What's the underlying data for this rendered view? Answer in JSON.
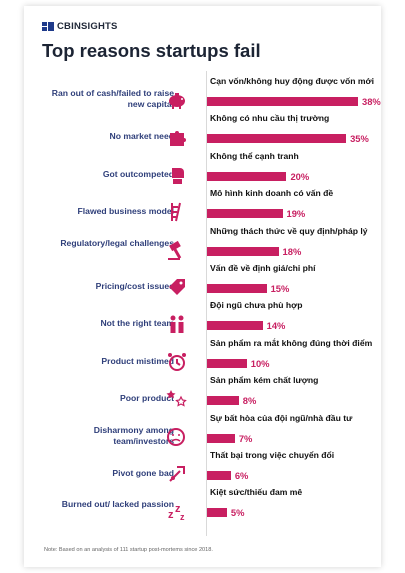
{
  "header": {
    "brand": "CBINSIGHTS",
    "title": "Top reasons startups fail"
  },
  "colors": {
    "bar": "#c81f61",
    "reason_text": "#2f3f7a",
    "icon": "#c81f61"
  },
  "chart_data": {
    "type": "bar",
    "orientation": "horizontal",
    "title": "Top reasons startups fail",
    "unit": "%",
    "xlim": [
      0,
      40
    ],
    "grid": false,
    "categories": [
      "Ran out of cash/failed to raise new capital",
      "No market need",
      "Got outcompeted",
      "Flawed business model",
      "Regulatory/legal challenges",
      "Pricing/cost issues",
      "Not the right team",
      "Product mistimed",
      "Poor product",
      "Disharmony among team/investors",
      "Pivot gone bad",
      "Burned out/ lacked passion"
    ],
    "values": [
      38,
      35,
      20,
      19,
      18,
      15,
      14,
      10,
      8,
      7,
      6,
      5
    ],
    "data_labels": [
      "38%",
      "35%",
      "20%",
      "19%",
      "18%",
      "15%",
      "14%",
      "10%",
      "8%",
      "7%",
      "6%",
      "5%"
    ],
    "annotations_vi": [
      "Cạn vốn/không huy động được vốn mới",
      "Không có nhu cầu thị trường",
      "Không thể cạnh tranh",
      "Mô hình kinh doanh có vấn đề",
      "Những thách thức về quy định/pháp lý",
      "Vấn đề về định giá/chi phí",
      "Đội ngũ chưa phù hợp",
      "Sản phẩm ra mắt không đúng thời điểm",
      "Sản phẩm kém chất lượng",
      "Sự bất hòa của đội ngũ/nhà đầu tư",
      "Thất bại trong việc chuyển đổi",
      "Kiệt sức/thiếu đam mê"
    ],
    "icons": [
      "piggy-bank-icon",
      "puzzle-piece-icon",
      "boxing-glove-icon",
      "broken-ladder-icon",
      "gavel-icon",
      "price-tag-icon",
      "team-people-icon",
      "alarm-clock-icon",
      "stars-rating-icon",
      "worried-face-icon",
      "arrow-pivot-icon",
      "sleeping-zzz-icon"
    ]
  },
  "footnote": "Note: Based on an analysis of 111 startup post-mortems since 2018."
}
